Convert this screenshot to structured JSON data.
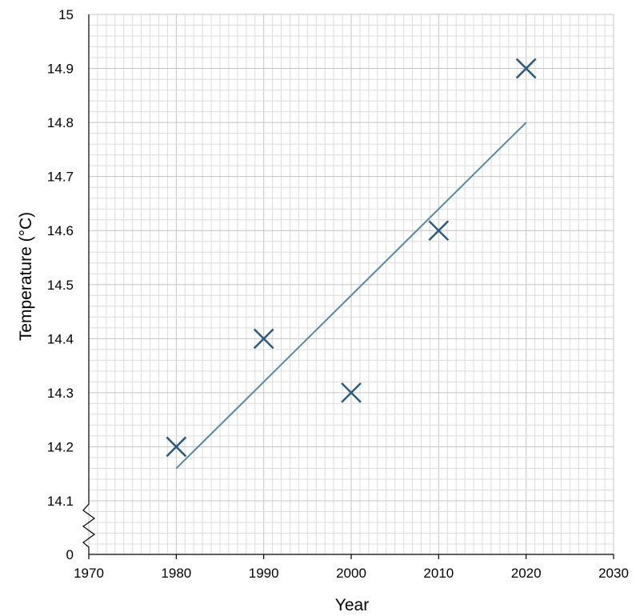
{
  "chart_data": {
    "type": "scatter",
    "xlabel": "Year",
    "ylabel": "Temperature (°C)",
    "xlim": [
      1970,
      2030
    ],
    "x_ticks": [
      1970,
      1980,
      1990,
      2000,
      2010,
      2020,
      2030
    ],
    "y_ticks": [
      "0",
      "14.1",
      "14.2",
      "14.3",
      "14.4",
      "14.5",
      "14.6",
      "14.7",
      "14.8",
      "14.9",
      "15"
    ],
    "y_axis_break": "between 0 and 14.1",
    "grid": true,
    "marker": "cross",
    "colors": {
      "marker": "#2f5b7c",
      "trendline": "#5b87a7"
    },
    "points": [
      {
        "x": 1980,
        "y": 14.2
      },
      {
        "x": 1990,
        "y": 14.4
      },
      {
        "x": 2000,
        "y": 14.3
      },
      {
        "x": 2010,
        "y": 14.6
      },
      {
        "x": 2020,
        "y": 14.9
      }
    ],
    "trendline": [
      {
        "x": 1980,
        "y": 14.16
      },
      {
        "x": 2020,
        "y": 14.8
      }
    ]
  }
}
